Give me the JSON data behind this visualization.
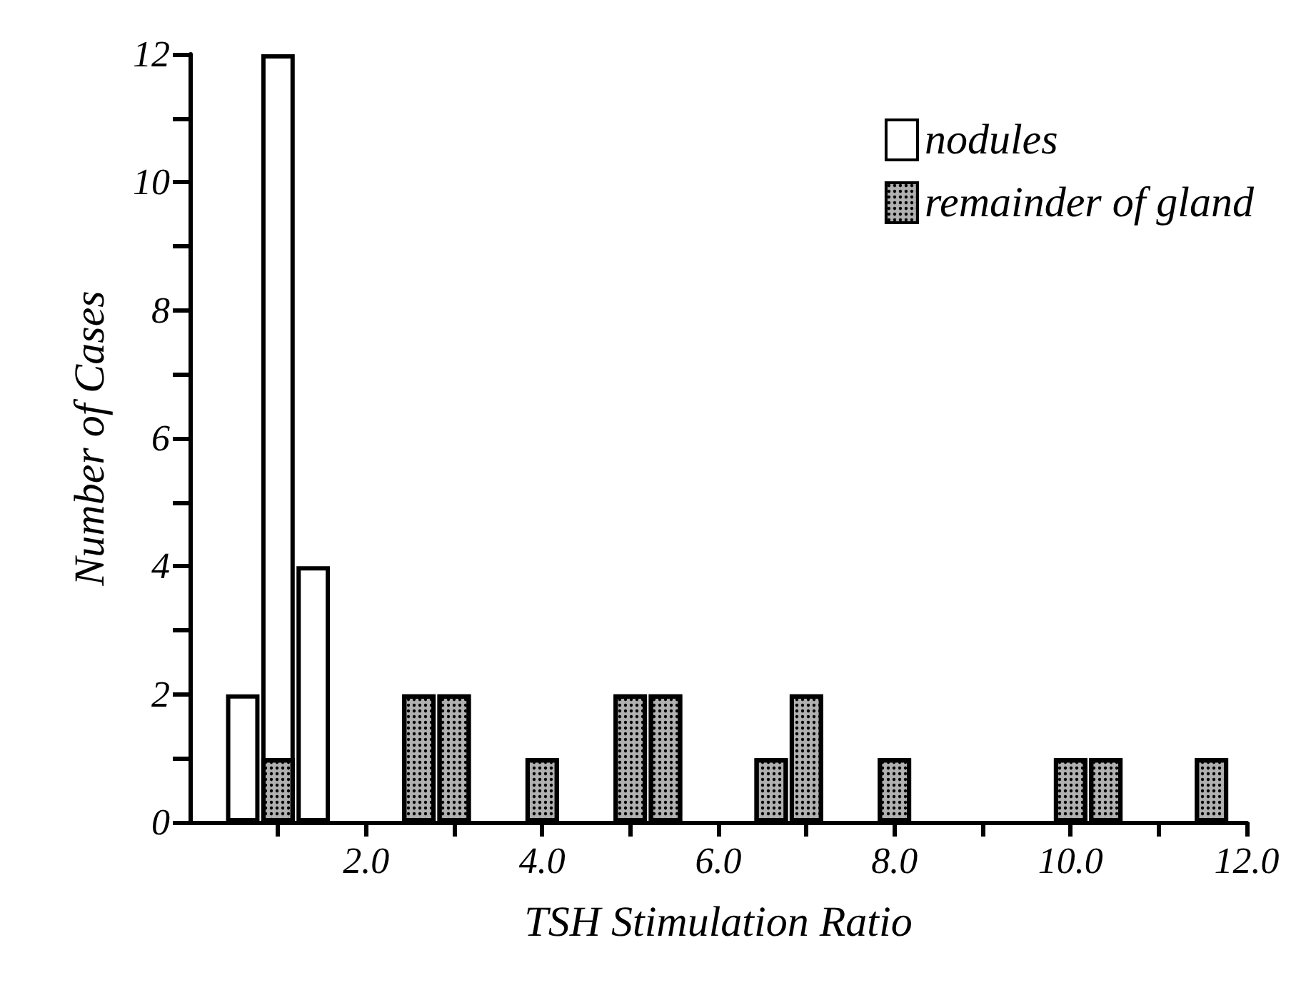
{
  "chart_data": {
    "type": "bar",
    "xlabel": "TSH Stimulation Ratio",
    "ylabel": "Number of Cases",
    "xlim": [
      0,
      12
    ],
    "ylim": [
      0,
      12
    ],
    "xticks": [
      {
        "value": 1,
        "label": null
      },
      {
        "value": 2,
        "label": "2.0"
      },
      {
        "value": 3,
        "label": null
      },
      {
        "value": 4,
        "label": "4.0"
      },
      {
        "value": 5,
        "label": null
      },
      {
        "value": 6,
        "label": "6.0"
      },
      {
        "value": 7,
        "label": null
      },
      {
        "value": 8,
        "label": "8.0"
      },
      {
        "value": 9,
        "label": null
      },
      {
        "value": 10,
        "label": "10.0"
      },
      {
        "value": 11,
        "label": null
      },
      {
        "value": 12,
        "label": "12.0"
      }
    ],
    "yticks": [
      0,
      {
        "value": 1,
        "label": null
      },
      2,
      {
        "value": 3,
        "label": null
      },
      4,
      {
        "value": 5,
        "label": null
      },
      6,
      {
        "value": 7,
        "label": null
      },
      8,
      {
        "value": 9,
        "label": null
      },
      10,
      {
        "value": 11,
        "label": null
      },
      12
    ],
    "legend": "top right",
    "grid": false,
    "series": [
      {
        "name": "nodules",
        "color": "#ffffff",
        "x": [
          0.6,
          1.0,
          1.4
        ],
        "values": [
          2,
          12,
          4
        ]
      },
      {
        "name": "remainder of gland",
        "color": "#b0b0b0",
        "x": [
          1.0,
          2.6,
          3.0,
          4.0,
          5.0,
          5.4,
          6.6,
          7.0,
          8.0,
          10.0,
          10.4,
          11.6
        ],
        "values": [
          1,
          2,
          2,
          1,
          2,
          2,
          1,
          2,
          1,
          1,
          1,
          1
        ]
      }
    ]
  }
}
